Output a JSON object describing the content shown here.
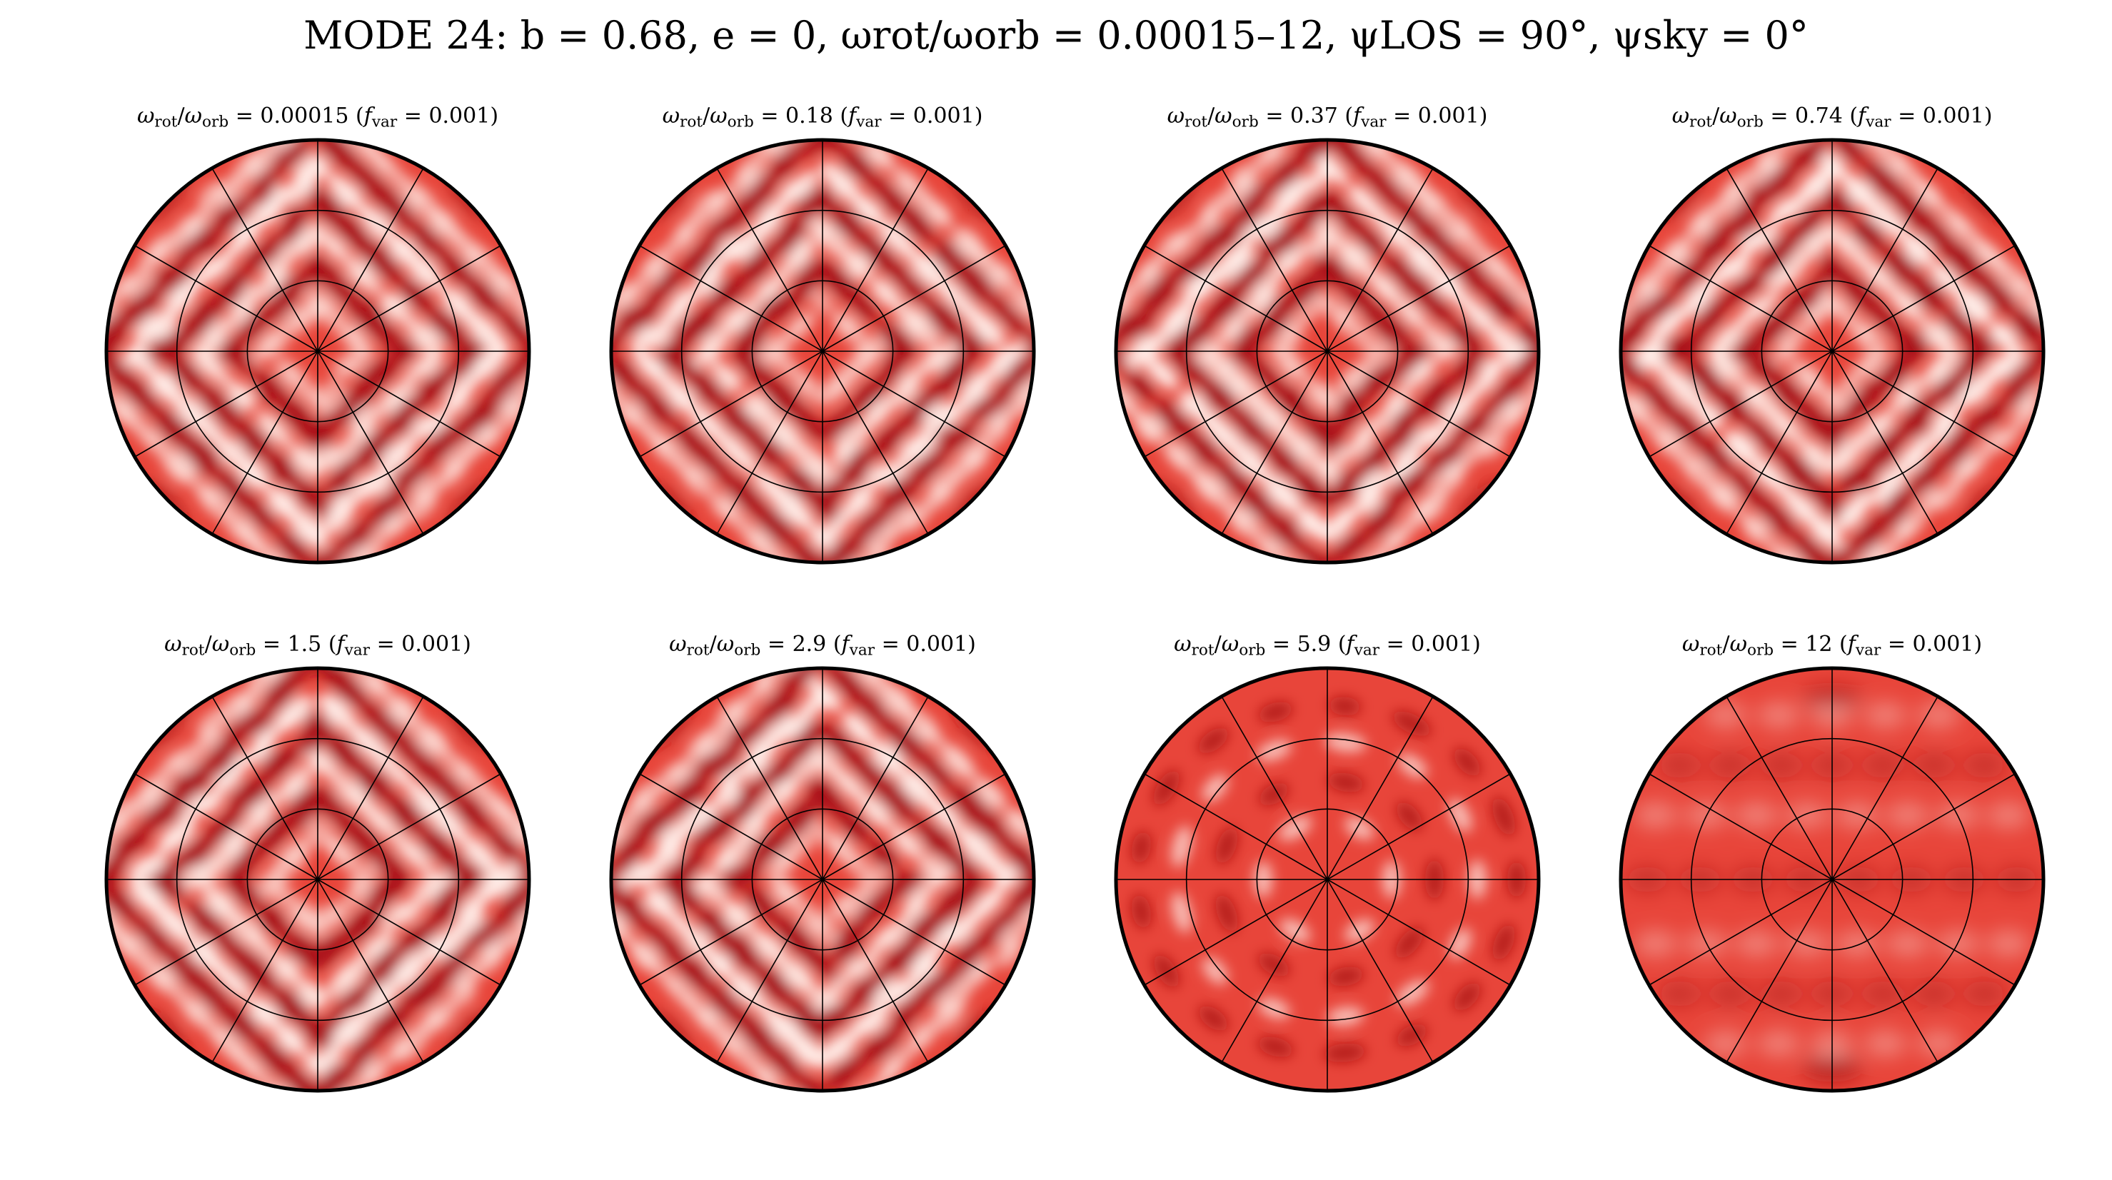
{
  "figure": {
    "title_prefix": "MODE 24: ",
    "title_rest": "b = 0.68, e = 0, ωrot/ωorb = 0.00015–12, ψLOS = 90°, ψsky = 0°"
  },
  "panels": [
    {
      "ratio": "0.00015",
      "fvar": "0.001",
      "pattern": "diamond",
      "seed": 1
    },
    {
      "ratio": "0.18",
      "fvar": "0.001",
      "pattern": "diamond",
      "seed": 2
    },
    {
      "ratio": "0.37",
      "fvar": "0.001",
      "pattern": "diamond",
      "seed": 3
    },
    {
      "ratio": "0.74",
      "fvar": "0.001",
      "pattern": "diamond",
      "seed": 4
    },
    {
      "ratio": "1.5",
      "fvar": "0.001",
      "pattern": "diamond",
      "seed": 5
    },
    {
      "ratio": "2.9",
      "fvar": "0.001",
      "pattern": "diamond",
      "seed": 6
    },
    {
      "ratio": "5.9",
      "fvar": "0.001",
      "pattern": "rings",
      "seed": 7
    },
    {
      "ratio": "12",
      "fvar": "0.001",
      "pattern": "smooth",
      "seed": 8
    }
  ],
  "colors": {
    "base": "#e8453a",
    "dark": "#a50f15",
    "light": "#fff0ea",
    "grid": "#000000"
  }
}
